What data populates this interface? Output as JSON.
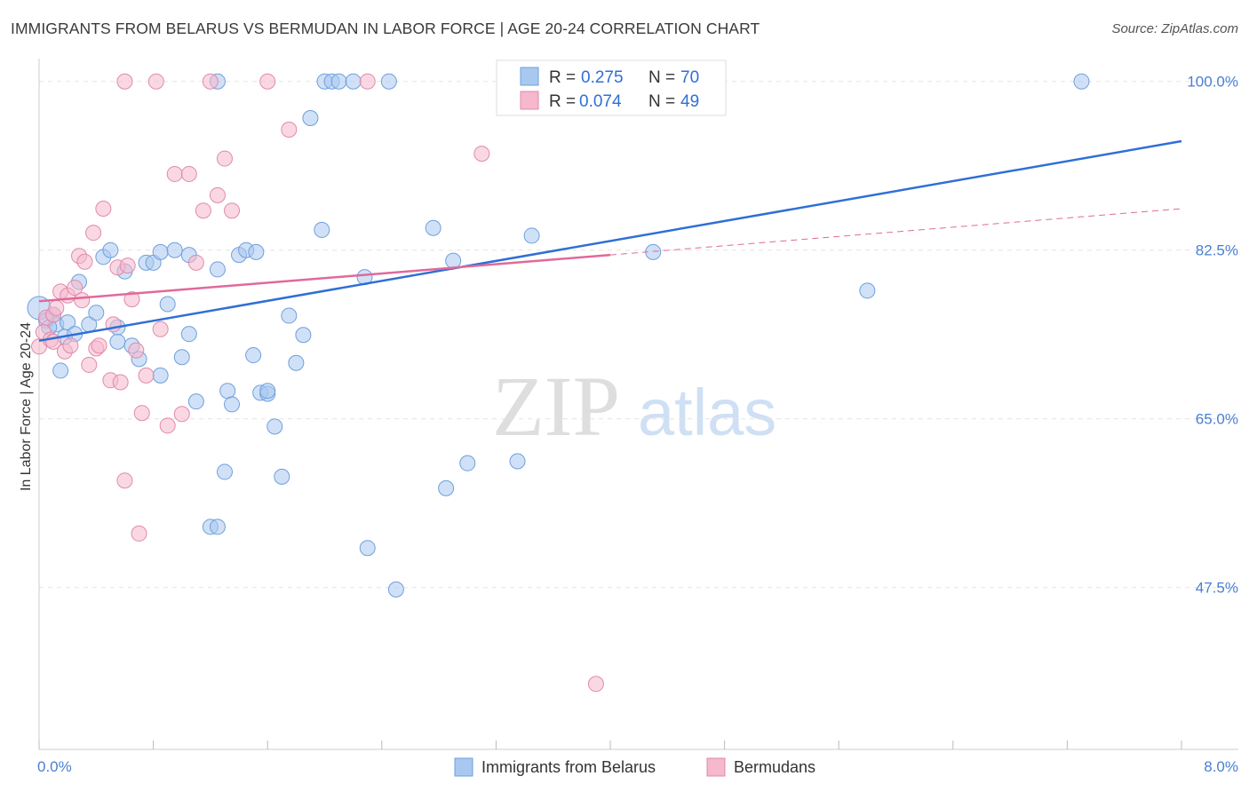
{
  "title": "IMMIGRANTS FROM BELARUS VS BERMUDAN IN LABOR FORCE | AGE 20-24 CORRELATION CHART",
  "source": "Source: ZipAtlas.com",
  "watermark": {
    "zip": "ZIP",
    "atlas": "atlas"
  },
  "chart_data": {
    "type": "scatter",
    "title": "IMMIGRANTS FROM BELARUS VS BERMUDAN IN LABOR FORCE | AGE 20-24 CORRELATION CHART",
    "xlabel": "",
    "ylabel": "In Labor Force | Age 20-24",
    "xlim": [
      0,
      8.0
    ],
    "ylim": [
      32,
      102
    ],
    "x_tick_labels": [
      "0.0%",
      "8.0%"
    ],
    "y_ticks": [
      47.5,
      65.0,
      82.5,
      100.0
    ],
    "y_tick_labels": [
      "47.5%",
      "65.0%",
      "82.5%",
      "100.0%"
    ],
    "grid": true,
    "legend_position": "top-center",
    "series": [
      {
        "name": "Immigrants from Belarus",
        "color": "#a9c8f0",
        "line_color": "#2f6fd6",
        "r_label": "R =",
        "r_value": "0.275",
        "n_label": "N =",
        "n_value": "70",
        "trend": {
          "x": [
            0.0,
            8.0
          ],
          "y": [
            73.1,
            93.8
          ]
        },
        "points": [
          [
            0.0,
            76.5
          ],
          [
            0.05,
            75.2
          ],
          [
            0.1,
            75.8
          ],
          [
            0.12,
            74.8
          ],
          [
            0.15,
            70.0
          ],
          [
            0.18,
            73.5
          ],
          [
            0.2,
            75.0
          ],
          [
            0.25,
            73.8
          ],
          [
            0.28,
            79.2
          ],
          [
            0.35,
            74.8
          ],
          [
            0.4,
            76.0
          ],
          [
            0.45,
            81.8
          ],
          [
            0.5,
            82.5
          ],
          [
            0.55,
            73.0
          ],
          [
            0.55,
            74.5
          ],
          [
            0.6,
            80.3
          ],
          [
            0.65,
            72.6
          ],
          [
            0.7,
            71.2
          ],
          [
            0.75,
            81.2
          ],
          [
            0.8,
            81.2
          ],
          [
            0.85,
            82.3
          ],
          [
            0.85,
            69.5
          ],
          [
            0.9,
            76.9
          ],
          [
            0.95,
            82.5
          ],
          [
            1.0,
            71.4
          ],
          [
            1.05,
            82.0
          ],
          [
            1.05,
            73.8
          ],
          [
            1.1,
            66.8
          ],
          [
            1.2,
            53.8
          ],
          [
            1.25,
            100.0
          ],
          [
            1.25,
            53.8
          ],
          [
            1.25,
            80.5
          ],
          [
            1.3,
            59.5
          ],
          [
            1.32,
            67.9
          ],
          [
            1.35,
            66.5
          ],
          [
            1.4,
            82.0
          ],
          [
            1.45,
            82.5
          ],
          [
            1.5,
            71.6
          ],
          [
            1.52,
            82.3
          ],
          [
            1.55,
            67.7
          ],
          [
            1.6,
            67.6
          ],
          [
            1.6,
            67.9
          ],
          [
            1.65,
            64.2
          ],
          [
            1.7,
            59.0
          ],
          [
            1.75,
            75.7
          ],
          [
            1.8,
            70.8
          ],
          [
            1.85,
            73.7
          ],
          [
            1.9,
            96.2
          ],
          [
            1.98,
            84.6
          ],
          [
            2.0,
            100.0
          ],
          [
            2.05,
            100.0
          ],
          [
            2.1,
            100.0
          ],
          [
            2.2,
            100.0
          ],
          [
            2.28,
            79.7
          ],
          [
            2.3,
            51.6
          ],
          [
            2.45,
            100.0
          ],
          [
            2.5,
            47.3
          ],
          [
            2.76,
            84.8
          ],
          [
            2.85,
            57.8
          ],
          [
            2.9,
            81.4
          ],
          [
            3.0,
            60.4
          ],
          [
            3.35,
            60.6
          ],
          [
            3.45,
            84.0
          ],
          [
            3.95,
            100.0
          ],
          [
            4.0,
            100.0
          ],
          [
            4.1,
            100.0
          ],
          [
            4.3,
            82.3
          ],
          [
            5.8,
            78.3
          ],
          [
            7.3,
            100.0
          ],
          [
            0.07,
            74.5
          ]
        ]
      },
      {
        "name": "Bermudans",
        "color": "#f5b8cc",
        "line_color": "#e0699a",
        "r_label": "R =",
        "r_value": "0.074",
        "n_label": "N =",
        "n_value": "49",
        "trend": {
          "x": [
            0.0,
            4.0
          ],
          "y": [
            77.2,
            82.0
          ]
        },
        "trend_ext": {
          "x": [
            4.0,
            8.0
          ],
          "y": [
            82.0,
            86.8
          ]
        },
        "points": [
          [
            0.0,
            72.5
          ],
          [
            0.03,
            74.0
          ],
          [
            0.05,
            75.5
          ],
          [
            0.08,
            73.2
          ],
          [
            0.1,
            75.8
          ],
          [
            0.12,
            76.5
          ],
          [
            0.15,
            78.2
          ],
          [
            0.18,
            72.0
          ],
          [
            0.2,
            77.8
          ],
          [
            0.22,
            72.6
          ],
          [
            0.25,
            78.6
          ],
          [
            0.28,
            81.9
          ],
          [
            0.3,
            77.3
          ],
          [
            0.32,
            81.3
          ],
          [
            0.35,
            70.6
          ],
          [
            0.38,
            84.3
          ],
          [
            0.4,
            72.3
          ],
          [
            0.42,
            72.6
          ],
          [
            0.45,
            86.8
          ],
          [
            0.5,
            69.0
          ],
          [
            0.52,
            74.8
          ],
          [
            0.55,
            80.7
          ],
          [
            0.57,
            68.8
          ],
          [
            0.6,
            58.6
          ],
          [
            0.62,
            80.9
          ],
          [
            0.65,
            77.4
          ],
          [
            0.68,
            72.1
          ],
          [
            0.7,
            53.1
          ],
          [
            0.72,
            65.6
          ],
          [
            0.75,
            69.5
          ],
          [
            0.82,
            100.0
          ],
          [
            0.85,
            74.3
          ],
          [
            0.9,
            64.3
          ],
          [
            0.95,
            90.4
          ],
          [
            1.0,
            65.5
          ],
          [
            1.05,
            90.4
          ],
          [
            1.1,
            81.2
          ],
          [
            1.15,
            86.6
          ],
          [
            1.2,
            100.0
          ],
          [
            1.25,
            88.2
          ],
          [
            1.3,
            92.0
          ],
          [
            1.35,
            86.6
          ],
          [
            1.6,
            100.0
          ],
          [
            1.75,
            95.0
          ],
          [
            2.3,
            100.0
          ],
          [
            3.1,
            92.5
          ],
          [
            3.9,
            37.5
          ],
          [
            0.6,
            100.0
          ],
          [
            0.1,
            73.0
          ]
        ]
      }
    ]
  }
}
